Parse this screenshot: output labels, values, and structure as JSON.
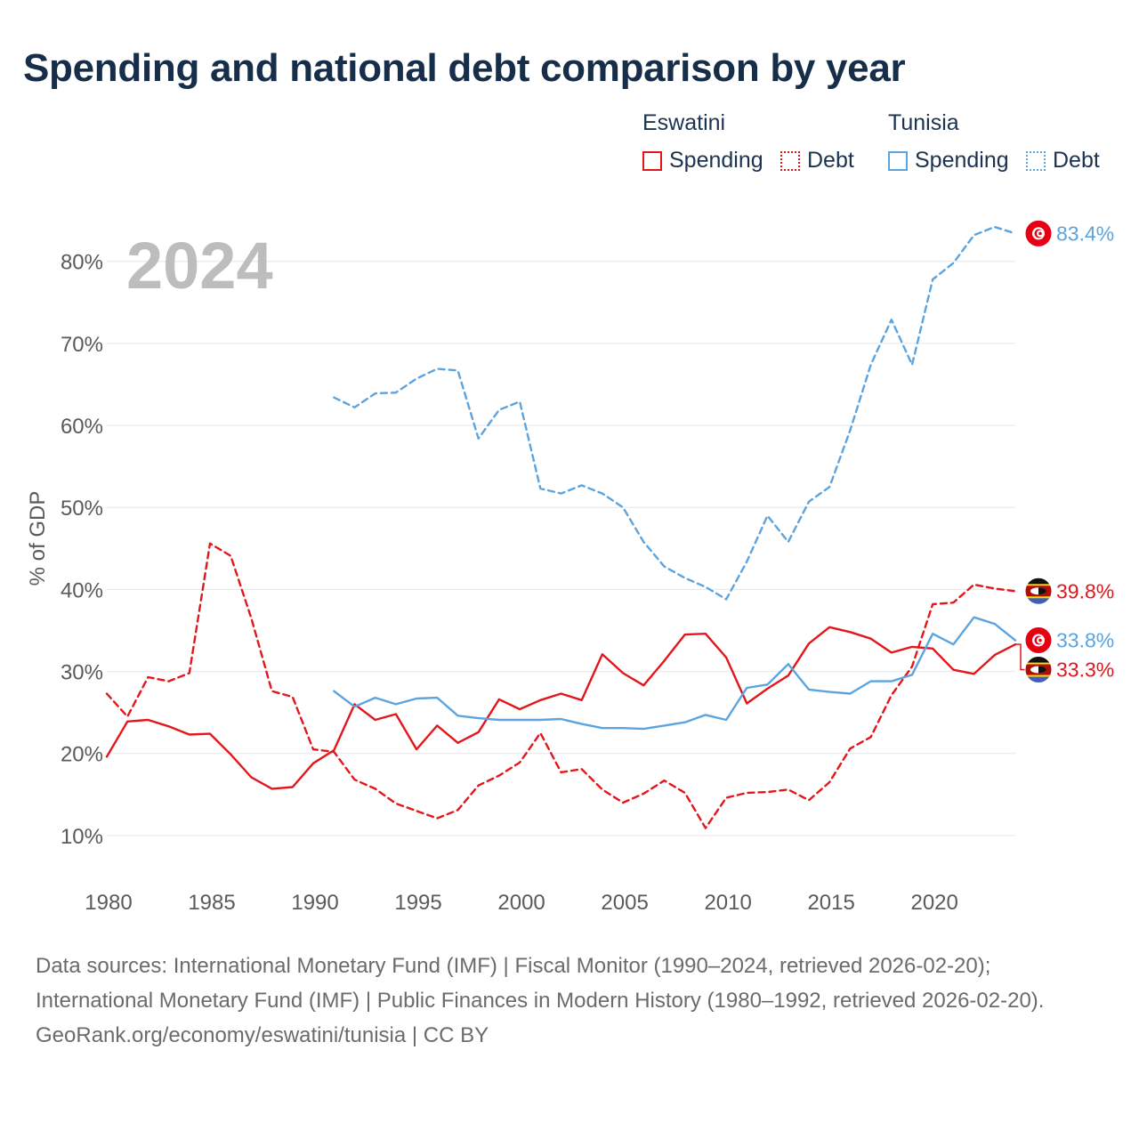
{
  "title": "Spending and national debt comparison by year",
  "legend": {
    "groups": [
      {
        "name": "Eswatini",
        "items": [
          {
            "label": "Spending",
            "color": "#e4161b",
            "style": "solid"
          },
          {
            "label": "Debt",
            "color": "#e4161b",
            "style": "dotted"
          }
        ]
      },
      {
        "name": "Tunisia",
        "items": [
          {
            "label": "Spending",
            "color": "#5ba4df",
            "style": "solid"
          },
          {
            "label": "Debt",
            "color": "#5ba4df",
            "style": "dotted"
          }
        ]
      }
    ]
  },
  "footer": {
    "sources": "Data sources: International Monetary Fund (IMF) | Fiscal Monitor (1990–2024, retrieved 2026-02-20); International Monetary Fund (IMF) | Public Finances in Modern History (1980–1992, retrieved 2026-02-20).",
    "credit": "GeoRank.org/economy/eswatini/tunisia | CC BY"
  },
  "chart_data": {
    "type": "line",
    "year_label": "2024",
    "ylabel": "% of GDP",
    "xlabel": "",
    "xlim": [
      1980,
      2024
    ],
    "ylim": [
      5,
      88
    ],
    "x_ticks": [
      1980,
      1985,
      1990,
      1995,
      2000,
      2005,
      2010,
      2015,
      2020
    ],
    "y_ticks": [
      10,
      20,
      30,
      40,
      50,
      60,
      70,
      80
    ],
    "y_tick_labels": [
      "10%",
      "20%",
      "30%",
      "40%",
      "50%",
      "60%",
      "70%",
      "80%"
    ],
    "series": [
      {
        "name": "Eswatini Spending",
        "country": "Eswatini",
        "color": "#e4161b",
        "dash": "solid",
        "start": 1980,
        "values": [
          19.6,
          23.9,
          24.1,
          23.3,
          22.3,
          22.4,
          19.9,
          17.1,
          15.7,
          15.9,
          18.8,
          20.4,
          26.0,
          24.1,
          24.8,
          20.5,
          23.4,
          21.3,
          22.6,
          26.6,
          25.4,
          26.5,
          27.3,
          26.5,
          32.1,
          29.8,
          28.3,
          31.3,
          34.5,
          34.6,
          31.7,
          26.1,
          27.9,
          29.5,
          33.4,
          35.4,
          34.8,
          34.0,
          32.3,
          33.0,
          32.8,
          30.2,
          29.7,
          32.0,
          33.3
        ],
        "end_label": "33.3%",
        "flag": "eswatini"
      },
      {
        "name": "Eswatini Debt",
        "country": "Eswatini",
        "color": "#e4161b",
        "dash": "dashed",
        "start": 1980,
        "values": [
          27.3,
          24.5,
          29.3,
          28.8,
          29.8,
          45.6,
          44.1,
          36.5,
          27.6,
          26.9,
          20.5,
          20.2,
          16.8,
          15.7,
          13.9,
          13.0,
          12.1,
          13.1,
          16.1,
          17.3,
          18.9,
          22.5,
          17.7,
          18.1,
          15.6,
          14.0,
          15.1,
          16.7,
          15.2,
          10.9,
          14.6,
          15.2,
          15.3,
          15.6,
          14.3,
          16.5,
          20.6,
          22.0,
          27.1,
          30.6,
          38.2,
          38.4,
          40.6,
          40.1,
          39.8
        ],
        "end_label": "39.8%",
        "flag": "eswatini"
      },
      {
        "name": "Tunisia Spending",
        "country": "Tunisia",
        "color": "#5ba4df",
        "dash": "solid",
        "start": 1991,
        "values": [
          27.6,
          25.7,
          26.8,
          26.0,
          26.7,
          26.8,
          24.6,
          24.3,
          24.1,
          24.1,
          24.1,
          24.2,
          23.6,
          23.1,
          23.1,
          23.0,
          23.4,
          23.8,
          24.7,
          24.1,
          28.0,
          28.4,
          30.9,
          27.8,
          27.5,
          27.3,
          28.8,
          28.8,
          29.6,
          34.6,
          33.3,
          36.6,
          35.8,
          33.8
        ],
        "end_label": "33.8%",
        "flag": "tunisia"
      },
      {
        "name": "Tunisia Debt",
        "country": "Tunisia",
        "color": "#5ba4df",
        "dash": "dashed",
        "start": 1991,
        "values": [
          63.4,
          62.2,
          63.9,
          64.0,
          65.7,
          66.9,
          66.7,
          58.4,
          61.9,
          62.9,
          52.3,
          51.7,
          52.7,
          51.7,
          50.0,
          45.8,
          42.8,
          41.4,
          40.3,
          38.8,
          43.4,
          49.0,
          45.8,
          50.7,
          52.5,
          59.4,
          67.4,
          72.9,
          67.4,
          77.8,
          79.8,
          83.2,
          84.2,
          83.4
        ],
        "end_label": "83.4%",
        "flag": "tunisia"
      }
    ]
  }
}
